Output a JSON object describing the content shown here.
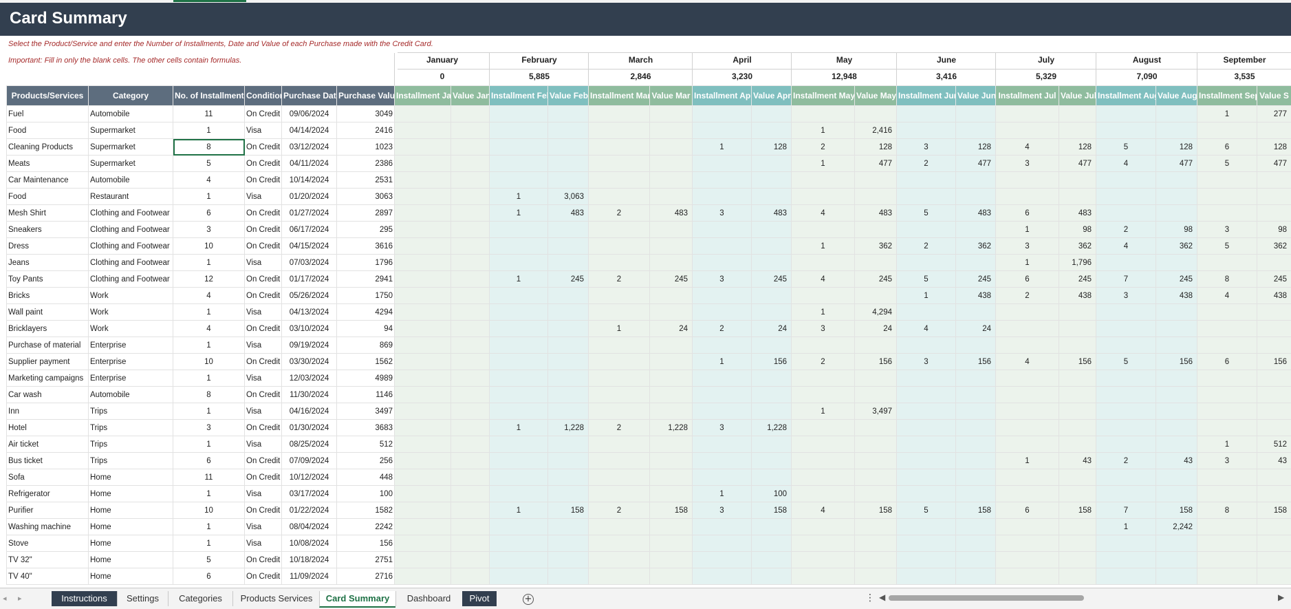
{
  "title": "Card Summary",
  "instructions": {
    "line1": "Select the Product/Service and enter the Number of Installments, Date and Value of each Purchase made with the Credit Card.",
    "line2": "Important: Fill in only the blank cells. The other cells contain formulas."
  },
  "months": [
    {
      "name": "January",
      "total": "0"
    },
    {
      "name": "February",
      "total": "5,885"
    },
    {
      "name": "March",
      "total": "2,846"
    },
    {
      "name": "April",
      "total": "3,230"
    },
    {
      "name": "May",
      "total": "12,948"
    },
    {
      "name": "June",
      "total": "3,416"
    },
    {
      "name": "July",
      "total": "5,329"
    },
    {
      "name": "August",
      "total": "7,090"
    },
    {
      "name": "September",
      "total": "3,535"
    }
  ],
  "headers": [
    "Products/Services",
    "Category",
    "No. of Installments",
    "Condition",
    "Purchase Date",
    "Purchase Value",
    "Installment Jan",
    "Value  Jan",
    "Installment Feb",
    "Value  Feb",
    "Installment Mar",
    "Value  Mar",
    "Installment Apr",
    "Value  Apr",
    "Installment May",
    "Value  May",
    "Installment Jun",
    "Value  Jun",
    "Installment Jul",
    "Value  Jul",
    "Installment Aug",
    "Value  Aug",
    "Installment Sep",
    "Value  S"
  ],
  "rows": [
    [
      "Fuel",
      "Automobile",
      "11",
      "On Credit",
      "09/06/2024",
      "3049",
      "",
      "",
      "",
      "",
      "",
      "",
      "",
      "",
      "",
      "",
      "",
      "",
      "",
      "",
      "",
      "",
      "1",
      "277"
    ],
    [
      "Food",
      "Supermarket",
      "1",
      "Visa",
      "04/14/2024",
      "2416",
      "",
      "",
      "",
      "",
      "",
      "",
      "",
      "",
      "1",
      "2,416",
      "",
      "",
      "",
      "",
      "",
      "",
      "",
      ""
    ],
    [
      "Cleaning Products",
      "Supermarket",
      "8",
      "On Credit",
      "03/12/2024",
      "1023",
      "",
      "",
      "",
      "",
      "",
      "",
      "1",
      "128",
      "2",
      "128",
      "3",
      "128",
      "4",
      "128",
      "5",
      "128",
      "6",
      "128"
    ],
    [
      "Meats",
      "Supermarket",
      "5",
      "On Credit",
      "04/11/2024",
      "2386",
      "",
      "",
      "",
      "",
      "",
      "",
      "",
      "",
      "1",
      "477",
      "2",
      "477",
      "3",
      "477",
      "4",
      "477",
      "5",
      "477"
    ],
    [
      "Car Maintenance",
      "Automobile",
      "4",
      "On Credit",
      "10/14/2024",
      "2531",
      "",
      "",
      "",
      "",
      "",
      "",
      "",
      "",
      "",
      "",
      "",
      "",
      "",
      "",
      "",
      "",
      "",
      ""
    ],
    [
      "Food",
      "Restaurant",
      "1",
      "Visa",
      "01/20/2024",
      "3063",
      "",
      "",
      "1",
      "3,063",
      "",
      "",
      "",
      "",
      "",
      "",
      "",
      "",
      "",
      "",
      "",
      "",
      "",
      ""
    ],
    [
      "Mesh Shirt",
      "Clothing and Footwear",
      "6",
      "On Credit",
      "01/27/2024",
      "2897",
      "",
      "",
      "1",
      "483",
      "2",
      "483",
      "3",
      "483",
      "4",
      "483",
      "5",
      "483",
      "6",
      "483",
      "",
      "",
      "",
      ""
    ],
    [
      "Sneakers",
      "Clothing and Footwear",
      "3",
      "On Credit",
      "06/17/2024",
      "295",
      "",
      "",
      "",
      "",
      "",
      "",
      "",
      "",
      "",
      "",
      "",
      "",
      "1",
      "98",
      "2",
      "98",
      "3",
      "98"
    ],
    [
      "Dress",
      "Clothing and Footwear",
      "10",
      "On Credit",
      "04/15/2024",
      "3616",
      "",
      "",
      "",
      "",
      "",
      "",
      "",
      "",
      "1",
      "362",
      "2",
      "362",
      "3",
      "362",
      "4",
      "362",
      "5",
      "362"
    ],
    [
      "Jeans",
      "Clothing and Footwear",
      "1",
      "Visa",
      "07/03/2024",
      "1796",
      "",
      "",
      "",
      "",
      "",
      "",
      "",
      "",
      "",
      "",
      "",
      "",
      "1",
      "1,796",
      "",
      "",
      "",
      ""
    ],
    [
      "Toy Pants",
      "Clothing and Footwear",
      "12",
      "On Credit",
      "01/17/2024",
      "2941",
      "",
      "",
      "1",
      "245",
      "2",
      "245",
      "3",
      "245",
      "4",
      "245",
      "5",
      "245",
      "6",
      "245",
      "7",
      "245",
      "8",
      "245"
    ],
    [
      "Bricks",
      "Work",
      "4",
      "On Credit",
      "05/26/2024",
      "1750",
      "",
      "",
      "",
      "",
      "",
      "",
      "",
      "",
      "",
      "",
      "1",
      "438",
      "2",
      "438",
      "3",
      "438",
      "4",
      "438"
    ],
    [
      "Wall paint",
      "Work",
      "1",
      "Visa",
      "04/13/2024",
      "4294",
      "",
      "",
      "",
      "",
      "",
      "",
      "",
      "",
      "1",
      "4,294",
      "",
      "",
      "",
      "",
      "",
      "",
      "",
      ""
    ],
    [
      "Bricklayers",
      "Work",
      "4",
      "On Credit",
      "03/10/2024",
      "94",
      "",
      "",
      "",
      "",
      "1",
      "24",
      "2",
      "24",
      "3",
      "24",
      "4",
      "24",
      "",
      "",
      "",
      "",
      "",
      ""
    ],
    [
      "Purchase of material",
      "Enterprise",
      "1",
      "Visa",
      "09/19/2024",
      "869",
      "",
      "",
      "",
      "",
      "",
      "",
      "",
      "",
      "",
      "",
      "",
      "",
      "",
      "",
      "",
      "",
      "",
      ""
    ],
    [
      "Supplier payment",
      "Enterprise",
      "10",
      "On Credit",
      "03/30/2024",
      "1562",
      "",
      "",
      "",
      "",
      "",
      "",
      "1",
      "156",
      "2",
      "156",
      "3",
      "156",
      "4",
      "156",
      "5",
      "156",
      "6",
      "156"
    ],
    [
      "Marketing campaigns",
      "Enterprise",
      "1",
      "Visa",
      "12/03/2024",
      "4989",
      "",
      "",
      "",
      "",
      "",
      "",
      "",
      "",
      "",
      "",
      "",
      "",
      "",
      "",
      "",
      "",
      "",
      ""
    ],
    [
      "Car wash",
      "Automobile",
      "8",
      "On Credit",
      "11/30/2024",
      "1146",
      "",
      "",
      "",
      "",
      "",
      "",
      "",
      "",
      "",
      "",
      "",
      "",
      "",
      "",
      "",
      "",
      "",
      ""
    ],
    [
      "Inn",
      "Trips",
      "1",
      "Visa",
      "04/16/2024",
      "3497",
      "",
      "",
      "",
      "",
      "",
      "",
      "",
      "",
      "1",
      "3,497",
      "",
      "",
      "",
      "",
      "",
      "",
      "",
      ""
    ],
    [
      "Hotel",
      "Trips",
      "3",
      "On Credit",
      "01/30/2024",
      "3683",
      "",
      "",
      "1",
      "1,228",
      "2",
      "1,228",
      "3",
      "1,228",
      "",
      "",
      "",
      "",
      "",
      "",
      "",
      "",
      "",
      ""
    ],
    [
      "Air ticket",
      "Trips",
      "1",
      "Visa",
      "08/25/2024",
      "512",
      "",
      "",
      "",
      "",
      "",
      "",
      "",
      "",
      "",
      "",
      "",
      "",
      "",
      "",
      "",
      "",
      "1",
      "512"
    ],
    [
      "Bus ticket",
      "Trips",
      "6",
      "On Credit",
      "07/09/2024",
      "256",
      "",
      "",
      "",
      "",
      "",
      "",
      "",
      "",
      "",
      "",
      "",
      "",
      "1",
      "43",
      "2",
      "43",
      "3",
      "43"
    ],
    [
      "Sofa",
      "Home",
      "11",
      "On Credit",
      "10/12/2024",
      "448",
      "",
      "",
      "",
      "",
      "",
      "",
      "",
      "",
      "",
      "",
      "",
      "",
      "",
      "",
      "",
      "",
      "",
      ""
    ],
    [
      "Refrigerator",
      "Home",
      "1",
      "Visa",
      "03/17/2024",
      "100",
      "",
      "",
      "",
      "",
      "",
      "",
      "1",
      "100",
      "",
      "",
      "",
      "",
      "",
      "",
      "",
      "",
      "",
      ""
    ],
    [
      "Purifier",
      "Home",
      "10",
      "On Credit",
      "01/22/2024",
      "1582",
      "",
      "",
      "1",
      "158",
      "2",
      "158",
      "3",
      "158",
      "4",
      "158",
      "5",
      "158",
      "6",
      "158",
      "7",
      "158",
      "8",
      "158"
    ],
    [
      "Washing machine",
      "Home",
      "1",
      "Visa",
      "08/04/2024",
      "2242",
      "",
      "",
      "",
      "",
      "",
      "",
      "",
      "",
      "",
      "",
      "",
      "",
      "",
      "",
      "1",
      "2,242",
      "",
      ""
    ],
    [
      "Stove",
      "Home",
      "1",
      "Visa",
      "10/08/2024",
      "156",
      "",
      "",
      "",
      "",
      "",
      "",
      "",
      "",
      "",
      "",
      "",
      "",
      "",
      "",
      "",
      "",
      "",
      ""
    ],
    [
      "TV 32\"",
      "Home",
      "5",
      "On Credit",
      "10/18/2024",
      "2751",
      "",
      "",
      "",
      "",
      "",
      "",
      "",
      "",
      "",
      "",
      "",
      "",
      "",
      "",
      "",
      "",
      "",
      ""
    ],
    [
      "TV 40\"",
      "Home",
      "6",
      "On Credit",
      "11/09/2024",
      "2716",
      "",
      "",
      "",
      "",
      "",
      "",
      "",
      "",
      "",
      "",
      "",
      "",
      "",
      "",
      "",
      "",
      "",
      ""
    ]
  ],
  "sheet_tabs": [
    "Instructions",
    "Settings",
    "Categories",
    "Products Services",
    "Card Summary",
    "Dashboard",
    "Pivot"
  ],
  "active_tab": "Card Summary",
  "colors": {
    "banner": "#323f4f",
    "header_fixed": "#5d6d7e",
    "header_green": "#8fbc9e",
    "header_teal": "#7fbfbf",
    "note_text": "#a52a2a",
    "active_tab": "#1e7145"
  }
}
